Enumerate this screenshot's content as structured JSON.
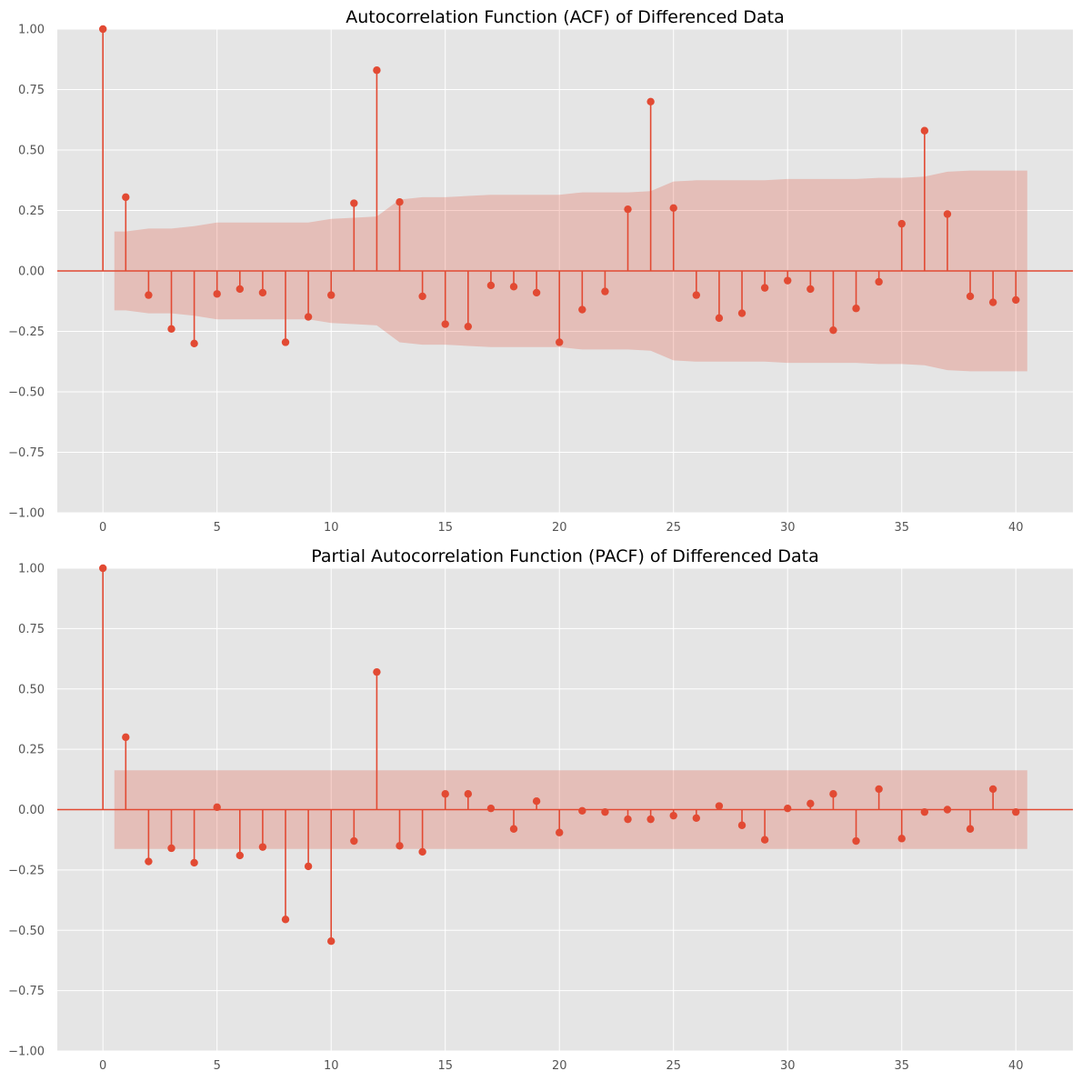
{
  "colors": {
    "stem": "#E24A33",
    "band": "#E24A33",
    "plot_bg": "#E5E5E5",
    "grid": "#FFFFFF",
    "tick_text": "#555555",
    "title_text": "#000000"
  },
  "chart_data": [
    {
      "type": "stem",
      "title": "Autocorrelation Function (ACF)  of Differenced Data",
      "xlabel": "",
      "ylabel": "",
      "xlim": [
        -2,
        42.5
      ],
      "ylim": [
        -1,
        1
      ],
      "xticks": [
        0,
        5,
        10,
        15,
        20,
        25,
        30,
        35,
        40
      ],
      "xtick_labels": [
        "0",
        "5",
        "10",
        "15",
        "20",
        "25",
        "30",
        "35",
        "40"
      ],
      "yticks": [
        -1,
        -0.75,
        -0.5,
        -0.25,
        0,
        0.25,
        0.5,
        0.75,
        1
      ],
      "ytick_labels": [
        "−1.00",
        "−0.75",
        "−0.50",
        "−0.25",
        "0.00",
        "0.25",
        "0.50",
        "0.75",
        "1.00"
      ],
      "grid": true,
      "lags": [
        0,
        1,
        2,
        3,
        4,
        5,
        6,
        7,
        8,
        9,
        10,
        11,
        12,
        13,
        14,
        15,
        16,
        17,
        18,
        19,
        20,
        21,
        22,
        23,
        24,
        25,
        26,
        27,
        28,
        29,
        30,
        31,
        32,
        33,
        34,
        35,
        36,
        37,
        38,
        39,
        40
      ],
      "values": [
        1.0,
        0.305,
        -0.1,
        -0.24,
        -0.3,
        -0.095,
        -0.075,
        -0.09,
        -0.295,
        -0.19,
        -0.1,
        0.28,
        0.83,
        0.285,
        -0.105,
        -0.22,
        -0.23,
        -0.06,
        -0.065,
        -0.09,
        -0.295,
        -0.16,
        -0.085,
        0.255,
        0.7,
        0.26,
        -0.1,
        -0.195,
        -0.175,
        -0.07,
        -0.04,
        -0.075,
        -0.245,
        -0.155,
        -0.045,
        0.195,
        0.58,
        0.235,
        -0.105,
        -0.13,
        -0.12
      ],
      "confidence_band": {
        "x": [
          0.5,
          1,
          2,
          3,
          4,
          5,
          6,
          7,
          8,
          9,
          10,
          11,
          12,
          13,
          14,
          15,
          16,
          17,
          18,
          19,
          20,
          21,
          22,
          23,
          24,
          25,
          26,
          27,
          28,
          29,
          30,
          31,
          32,
          33,
          34,
          35,
          36,
          37,
          38,
          39,
          40,
          40.5
        ],
        "upper": [
          0.163,
          0.163,
          0.175,
          0.175,
          0.185,
          0.2,
          0.2,
          0.2,
          0.2,
          0.2,
          0.215,
          0.22,
          0.225,
          0.295,
          0.305,
          0.305,
          0.31,
          0.315,
          0.315,
          0.315,
          0.315,
          0.325,
          0.325,
          0.325,
          0.33,
          0.37,
          0.375,
          0.375,
          0.375,
          0.375,
          0.38,
          0.38,
          0.38,
          0.38,
          0.385,
          0.385,
          0.39,
          0.41,
          0.415,
          0.415,
          0.415,
          0.415
        ]
      }
    },
    {
      "type": "stem",
      "title": "Partial Autocorrelation Function (PACF)  of Differenced Data",
      "xlabel": "",
      "ylabel": "",
      "xlim": [
        -2,
        42.5
      ],
      "ylim": [
        -1,
        1
      ],
      "xticks": [
        0,
        5,
        10,
        15,
        20,
        25,
        30,
        35,
        40
      ],
      "xtick_labels": [
        "0",
        "5",
        "10",
        "15",
        "20",
        "25",
        "30",
        "35",
        "40"
      ],
      "yticks": [
        -1,
        -0.75,
        -0.5,
        -0.25,
        0,
        0.25,
        0.5,
        0.75,
        1
      ],
      "ytick_labels": [
        "−1.00",
        "−0.75",
        "−0.50",
        "−0.25",
        "0.00",
        "0.25",
        "0.50",
        "0.75",
        "1.00"
      ],
      "grid": true,
      "lags": [
        0,
        1,
        2,
        3,
        4,
        5,
        6,
        7,
        8,
        9,
        10,
        11,
        12,
        13,
        14,
        15,
        16,
        17,
        18,
        19,
        20,
        21,
        22,
        23,
        24,
        25,
        26,
        27,
        28,
        29,
        30,
        31,
        32,
        33,
        34,
        35,
        36,
        37,
        38,
        39,
        40
      ],
      "values": [
        1.0,
        0.3,
        -0.215,
        -0.16,
        -0.22,
        0.01,
        -0.19,
        -0.155,
        -0.455,
        -0.235,
        -0.545,
        -0.13,
        0.57,
        -0.15,
        -0.175,
        0.065,
        0.065,
        0.005,
        -0.08,
        0.035,
        -0.095,
        -0.005,
        -0.01,
        -0.04,
        -0.04,
        -0.025,
        -0.035,
        0.015,
        -0.065,
        -0.125,
        0.005,
        0.025,
        0.065,
        -0.13,
        0.085,
        -0.12,
        -0.01,
        0.0,
        -0.08,
        0.085,
        -0.01
      ],
      "confidence_band": {
        "x": [
          0.5,
          40.5
        ],
        "upper": [
          0.163,
          0.163
        ]
      }
    }
  ]
}
